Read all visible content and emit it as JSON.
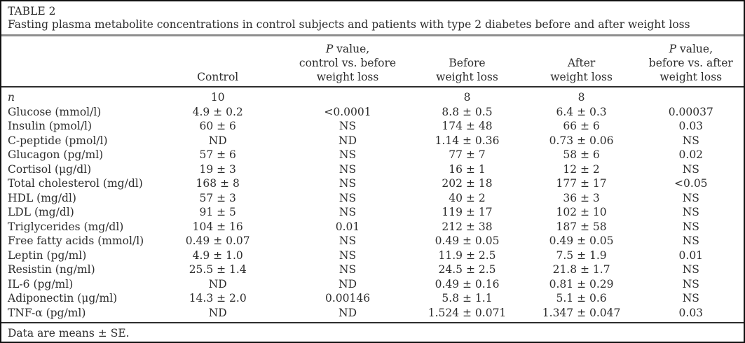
{
  "title": "TABLE 2",
  "caption": "Fasting plasma metabolite concentrations in control subjects and patients with type 2 diabetes before and after weight loss",
  "footnote": "Data are means ± SE.",
  "colors": {
    "text": "#2d2d2d",
    "caption_rule": "#8e8e8e",
    "header_rule": "#2e2e2e",
    "outer_border": "#111111",
    "background": "#ffffff"
  },
  "table": {
    "headers": {
      "control": {
        "l1": "Control"
      },
      "p_control_before": {
        "p": "P",
        "l1": " value,",
        "l2": "control vs. before",
        "l3": "weight loss"
      },
      "before": {
        "l1": "Before",
        "l2": "weight loss"
      },
      "after": {
        "l1": "After",
        "l2": "weight loss"
      },
      "p_before_after": {
        "p": "P",
        "l1": " value,",
        "l2": "before vs. after",
        "l3": "weight loss"
      }
    },
    "rows": [
      {
        "label": "n",
        "italic": true,
        "cells": [
          "10",
          "",
          "8",
          "8",
          ""
        ]
      },
      {
        "label": "Glucose (mmol/l)",
        "cells": [
          "4.9 ± 0.2",
          "<0.0001",
          "8.8 ± 0.5",
          "6.4 ± 0.3",
          "0.00037"
        ]
      },
      {
        "label": "Insulin (pmol/l)",
        "cells": [
          "60 ± 6",
          "NS",
          "174 ± 48",
          "66 ± 6",
          "0.03"
        ]
      },
      {
        "label": "C-peptide (pmol/l)",
        "cells": [
          "ND",
          "ND",
          "1.14 ± 0.36",
          "0.73 ± 0.06",
          "NS"
        ]
      },
      {
        "label": "Glucagon (pg/ml)",
        "cells": [
          "57 ± 6",
          "NS",
          "77 ± 7",
          "58 ± 6",
          "0.02"
        ]
      },
      {
        "label": "Cortisol (μg/dl)",
        "cells": [
          "19 ± 3",
          "NS",
          "16 ± 1",
          "12 ± 2",
          "NS"
        ]
      },
      {
        "label": "Total cholesterol (mg/dl)",
        "cells": [
          "168 ± 8",
          "NS",
          "202 ± 18",
          "177 ± 17",
          "<0.05"
        ]
      },
      {
        "label": "HDL (mg/dl)",
        "cells": [
          "57 ± 3",
          "NS",
          "40 ± 2",
          "36 ± 3",
          "NS"
        ]
      },
      {
        "label": "LDL (mg/dl)",
        "cells": [
          "91 ± 5",
          "NS",
          "119 ± 17",
          "102 ± 10",
          "NS"
        ]
      },
      {
        "label": "Triglycerides (mg/dl)",
        "cells": [
          "104 ± 16",
          "0.01",
          "212 ± 38",
          "187 ± 58",
          "NS"
        ]
      },
      {
        "label": "Free fatty acids (mmol/l)",
        "cells": [
          "0.49 ± 0.07",
          "NS",
          "0.49 ± 0.05",
          "0.49 ± 0.05",
          "NS"
        ]
      },
      {
        "label": "Leptin (pg/ml)",
        "cells": [
          "4.9 ± 1.0",
          "NS",
          "11.9 ± 2.5",
          "7.5 ± 1.9",
          "0.01"
        ]
      },
      {
        "label": "Resistin (ng/ml)",
        "cells": [
          "25.5 ± 1.4",
          "NS",
          "24.5 ± 2.5",
          "21.8 ± 1.7",
          "NS"
        ]
      },
      {
        "label": "IL-6 (pg/ml)",
        "cells": [
          "ND",
          "ND",
          "0.49 ± 0.16",
          "0.81 ± 0.29",
          "NS"
        ]
      },
      {
        "label": "Adiponectin (μg/ml)",
        "cells": [
          "14.3 ± 2.0",
          "0.00146",
          "5.8 ± 1.1",
          "5.1 ± 0.6",
          "NS"
        ]
      },
      {
        "label": "TNF-α (pg/ml)",
        "cells": [
          "ND",
          "ND",
          "1.524 ± 0.071",
          "1.347 ± 0.047",
          "0.03"
        ]
      }
    ]
  }
}
